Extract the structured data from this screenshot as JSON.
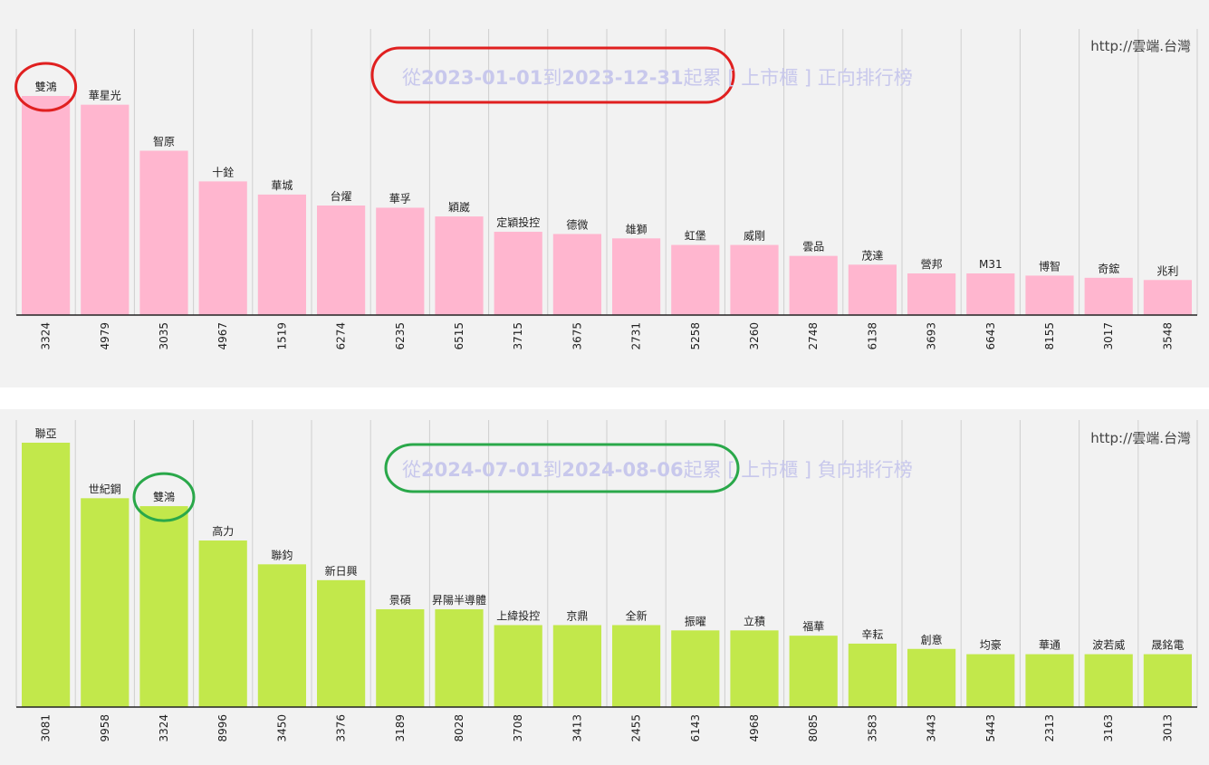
{
  "site_label": "http://雲端.台灣",
  "chart_data": [
    {
      "type": "bar",
      "title": "從2023-01-01到2023-12-31起累 [ 上市櫃 ] 正向排行榜",
      "title_parts": [
        "從",
        "2023-01-01",
        "到",
        "2023-12-31",
        "起累 [ 上市櫃 ] 正向排行榜"
      ],
      "bar_color": "#ffb6cf",
      "highlight_color": "#e02020",
      "highlight_index": 0,
      "categories": [
        "3324",
        "4979",
        "3035",
        "4967",
        "1519",
        "6274",
        "6235",
        "6515",
        "3715",
        "3675",
        "2731",
        "5258",
        "3260",
        "2748",
        "6138",
        "3693",
        "6643",
        "8155",
        "3017",
        "3548"
      ],
      "names": [
        "雙鴻",
        "華星光",
        "智原",
        "十銓",
        "華城",
        "台燿",
        "華孚",
        "穎崴",
        "定穎投控",
        "德微",
        "雄獅",
        "虹堡",
        "威剛",
        "雲品",
        "茂達",
        "營邦",
        "M31",
        "博智",
        "奇鋐",
        "兆利"
      ],
      "values": [
        100,
        96,
        75,
        61,
        55,
        50,
        49,
        45,
        38,
        37,
        35,
        32,
        32,
        27,
        23,
        19,
        19,
        18,
        17,
        16
      ],
      "ylim": [
        0,
        100
      ],
      "grid": true
    },
    {
      "type": "bar",
      "title": "從2024-07-01到2024-08-06起累 [ 上市櫃 ] 負向排行榜",
      "title_parts": [
        "從",
        "2024-07-01",
        "到",
        "2024-08-06",
        "起累 [ 上市櫃 ] 負向排行榜"
      ],
      "bar_color": "#c2e84b",
      "highlight_color": "#2aa84a",
      "highlight_index": 2,
      "categories": [
        "3081",
        "9958",
        "3324",
        "8996",
        "3450",
        "3376",
        "3189",
        "8028",
        "3708",
        "3413",
        "2455",
        "6143",
        "4968",
        "8085",
        "3583",
        "3443",
        "5443",
        "2313",
        "3163",
        "3013"
      ],
      "names": [
        "聯亞",
        "世紀鋼",
        "雙鴻",
        "高力",
        "聯鈞",
        "新日興",
        "景碩",
        "昇陽半導體",
        "上緯投控",
        "京鼎",
        "全新",
        "振曜",
        "立積",
        "福華",
        "辛耘",
        "創意",
        "均豪",
        "華通",
        "波若威",
        "晟銘電"
      ],
      "values": [
        100,
        79,
        76,
        63,
        54,
        48,
        37,
        37,
        31,
        31,
        31,
        29,
        29,
        27,
        24,
        22,
        20,
        20,
        20,
        20
      ],
      "ylim": [
        0,
        100
      ],
      "grid": true
    }
  ]
}
